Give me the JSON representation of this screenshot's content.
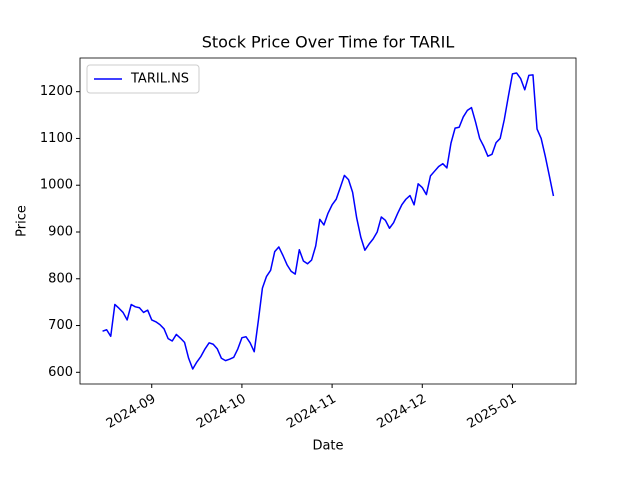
{
  "chart_data": {
    "type": "line",
    "title": "Stock Price Over Time for TARIL",
    "x_label": "Date",
    "y_label": "Price",
    "categories": [
      null,
      null,
      null,
      null,
      null,
      null,
      null,
      null,
      null,
      null,
      null,
      null,
      "2024-09",
      null,
      null,
      null,
      null,
      null,
      null,
      null,
      null,
      null,
      null,
      null,
      null,
      null,
      null,
      null,
      null,
      null,
      null,
      null,
      null,
      null,
      "2024-10",
      null,
      null,
      null,
      null,
      null,
      null,
      null,
      null,
      null,
      null,
      null,
      null,
      null,
      null,
      null,
      null,
      null,
      null,
      null,
      null,
      null,
      "2024-11",
      null,
      null,
      null,
      null,
      null,
      null,
      null,
      null,
      null,
      null,
      null,
      null,
      null,
      null,
      null,
      null,
      null,
      null,
      null,
      null,
      null,
      "2024-12",
      null,
      null,
      null,
      null,
      null,
      null,
      null,
      null,
      null,
      null,
      null,
      null,
      null,
      null,
      null,
      null,
      null,
      null,
      null,
      null,
      null,
      "2025-01",
      null,
      null,
      null,
      null,
      null,
      null,
      null,
      null,
      null,
      null
    ],
    "series": [
      {
        "name": "TARIL.NS",
        "color": "#0000ff",
        "values": [
          688,
          691,
          677,
          745,
          737,
          728,
          712,
          745,
          740,
          738,
          728,
          733,
          712,
          708,
          702,
          693,
          672,
          667,
          681,
          673,
          664,
          630,
          607,
          622,
          634,
          650,
          663,
          660,
          650,
          630,
          625,
          628,
          632,
          650,
          674,
          676,
          663,
          644,
          710,
          780,
          805,
          818,
          858,
          868,
          850,
          830,
          816,
          810,
          862,
          838,
          832,
          840,
          870,
          927,
          915,
          940,
          958,
          970,
          995,
          1021,
          1012,
          985,
          930,
          889,
          861,
          874,
          885,
          900,
          932,
          925,
          908,
          920,
          940,
          958,
          970,
          978,
          958,
          1003,
          995,
          980,
          1020,
          1030,
          1040,
          1046,
          1037,
          1090,
          1122,
          1124,
          1146,
          1160,
          1166,
          1135,
          1100,
          1083,
          1062,
          1066,
          1091,
          1100,
          1140,
          1190,
          1238,
          1240,
          1228,
          1204,
          1235,
          1236,
          1120,
          1100,
          1062,
          1020,
          977
        ]
      }
    ],
    "ylim": [
      575,
      1272
    ],
    "yticks": [
      600,
      700,
      800,
      900,
      1000,
      1100,
      1200
    ],
    "legend": "upper left",
    "grid": false
  }
}
